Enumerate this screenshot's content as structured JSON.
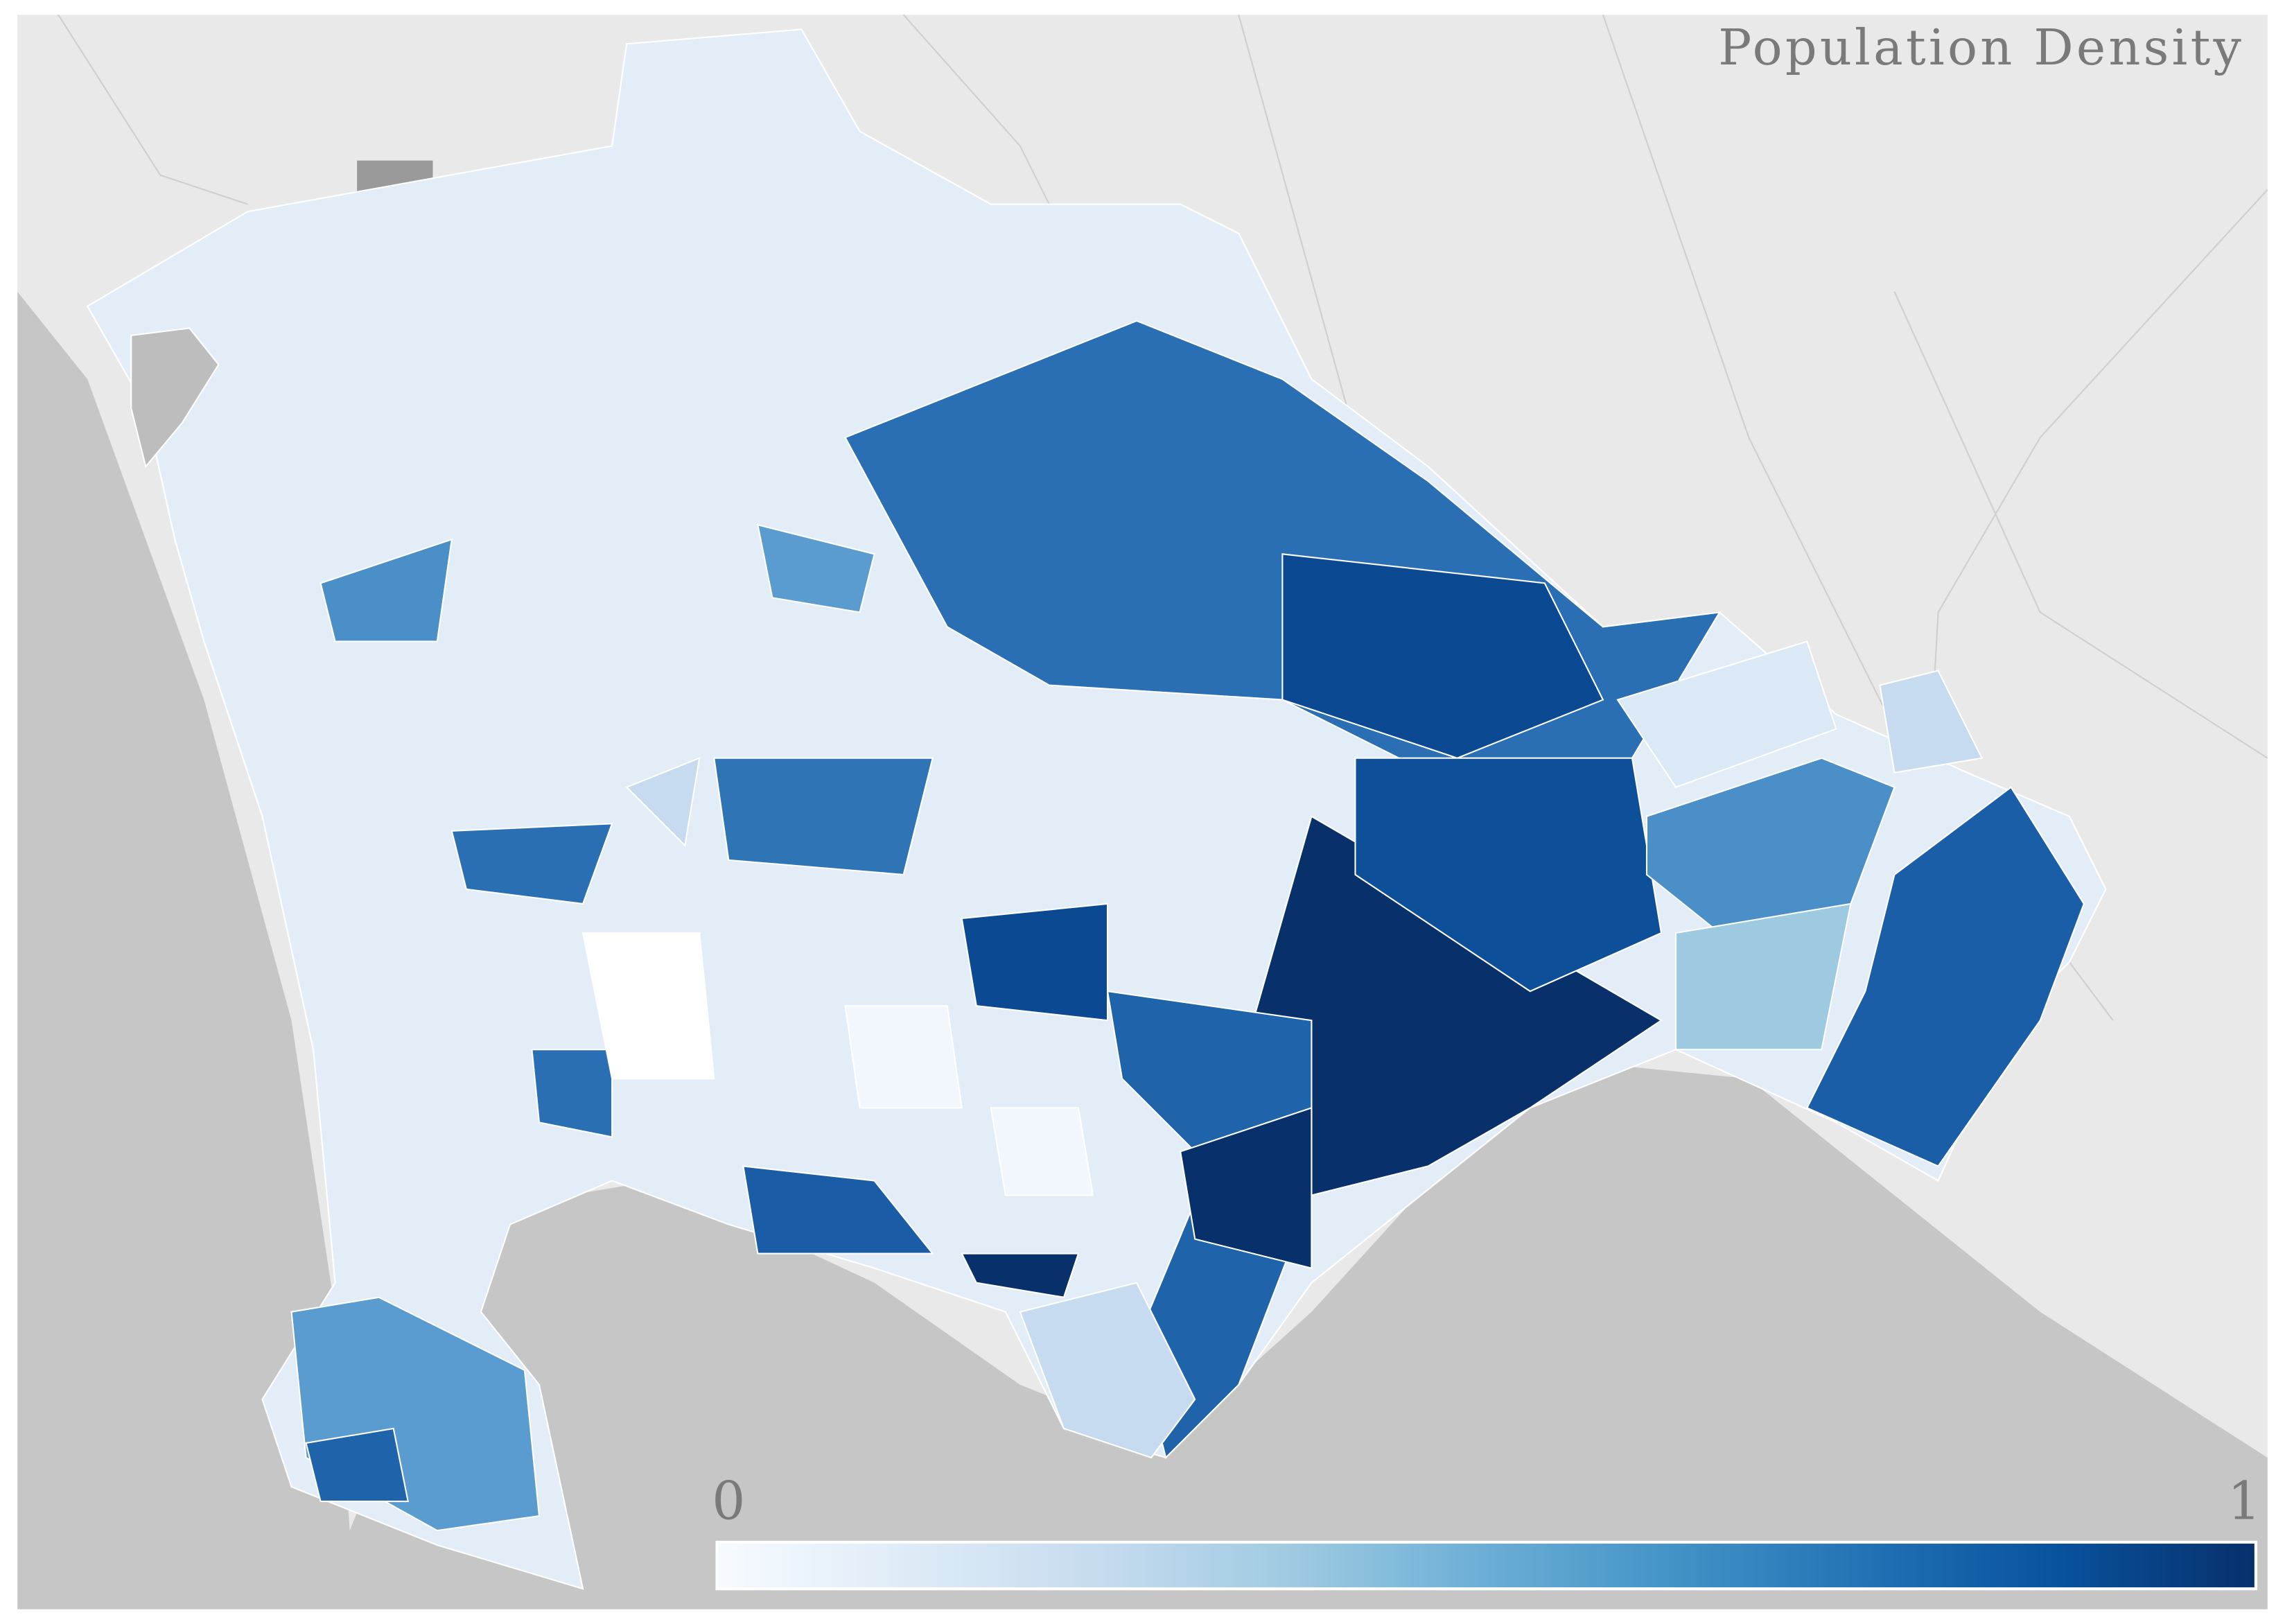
{
  "title": "Population Density",
  "legend": {
    "min_label": "0",
    "max_label": "1",
    "colors": [
      "#f7fbff",
      "#deebf7",
      "#c6dbef",
      "#9ecae1",
      "#6baed6",
      "#4292c6",
      "#2171b5",
      "#08519c",
      "#08306b"
    ]
  }
}
